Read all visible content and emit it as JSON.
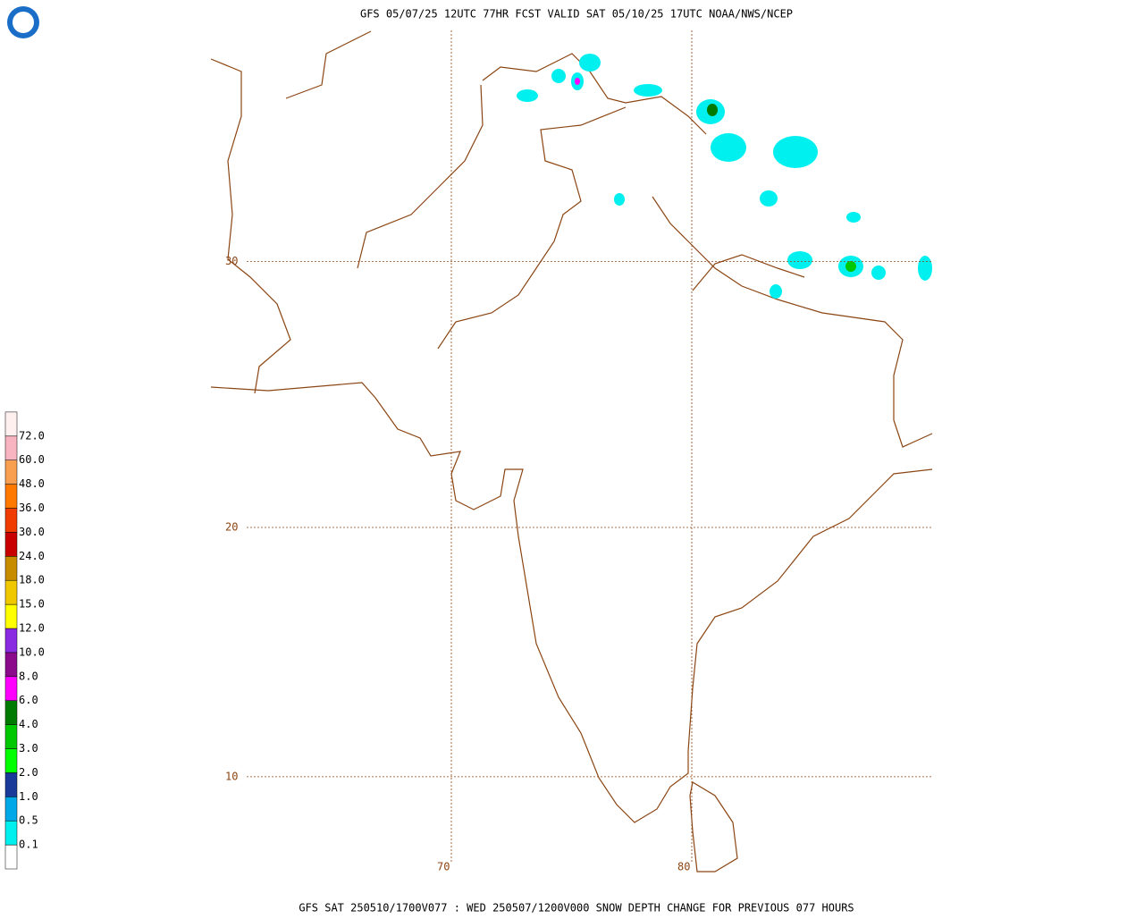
{
  "header": {
    "title": "GFS 05/07/25 12UTC 77HR FCST VALID SAT 05/10/25 17UTC NOAA/NWS/NCEP"
  },
  "footer": {
    "text": "GFS SAT 250510/1700V077 : WED 250507/1200V000 SNOW DEPTH CHANGE FOR PREVIOUS 077 HOURS"
  },
  "map": {
    "lat_lines": [
      30,
      20,
      10
    ],
    "lon_lines": [
      70,
      80
    ]
  },
  "legend": {
    "levels": [
      "0.1",
      "0.5",
      "1.0",
      "2.0",
      "3.0",
      "4.0",
      "6.0",
      "8.0",
      "10.0",
      "12.0",
      "15.0",
      "18.0",
      "24.0",
      "30.0",
      "36.0",
      "48.0",
      "60.0",
      "72.0"
    ],
    "colors": [
      "#ffffff",
      "#00f0f0",
      "#00a8e8",
      "#1a3a9a",
      "#00ff00",
      "#00c800",
      "#007a00",
      "#ff00ff",
      "#8b0a8b",
      "#8a2be2",
      "#ffff00",
      "#f0c800",
      "#c88c00",
      "#c80000",
      "#f03c00",
      "#ff7800",
      "#f8a050",
      "#f8b4c0",
      "#fff0f0"
    ]
  }
}
